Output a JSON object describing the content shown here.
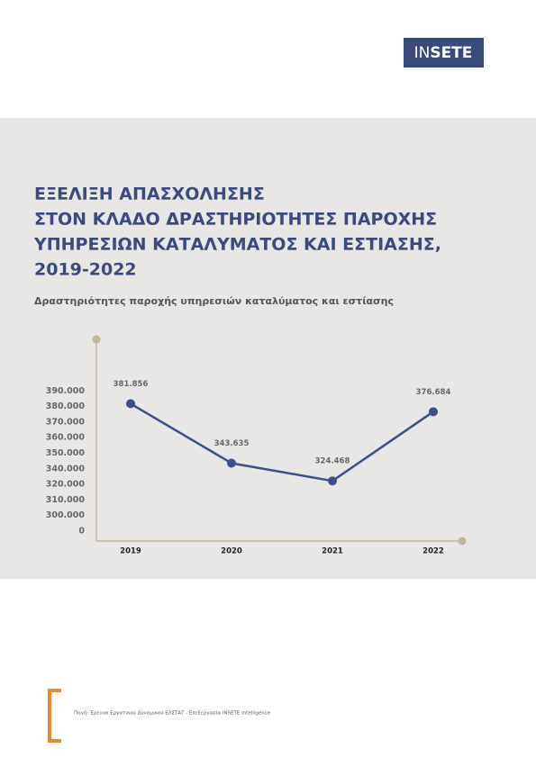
{
  "header": {
    "logo": [
      "IN",
      "SETE"
    ]
  },
  "chart_data": {
    "type": "line",
    "title": [
      "ΕΞΕΛΙΞΗ ΑΠΑΣΧΟΛΗΣΗΣ",
      "ΣΤΟΝ ΚΛΑΔΟ ΔΡΑΣΤΗΡΙΟΤΗΤΕΣ ΠΑΡΟΧΗΣ",
      "ΥΠΗΡΕΣΙΩΝ ΚΑΤΑΛΥΜΑΤΟΣ ΚΑΙ ΕΣΤΙΑΣΗΣ,",
      "2019-2022"
    ],
    "subtitle": "Δραστηριότητες παροχής υπηρεσιών καταλύματος και εστίασης",
    "categories": [
      "2019",
      "2020",
      "2021",
      "2022"
    ],
    "values": [
      381856,
      343635,
      324468,
      376684
    ],
    "value_labels": [
      "381.856",
      "343.635",
      "324.468",
      "376.684"
    ],
    "color": "#3d4f8a",
    "yticks": [
      0,
      {
        "value": 300000,
        "label": "300.000"
      },
      {
        "value": 310000,
        "label": "310.000"
      },
      {
        "value": 320000,
        "label": "320.000"
      },
      {
        "value": 340000,
        "label": "340.000"
      },
      {
        "value": 350000,
        "label": "350.000"
      },
      {
        "value": 360000,
        "label": "360.000"
      },
      {
        "value": 370000,
        "label": "370.000"
      },
      {
        "value": 380000,
        "label": "380.000"
      },
      {
        "value": 390000,
        "label": "390.000"
      }
    ]
  },
  "footer": {
    "source": "Πηγή: Έρευνα Εργατικού Δυναμικού ΕΛΣΤΑΤ - Επεξεργασία INSETE Intelligence"
  }
}
